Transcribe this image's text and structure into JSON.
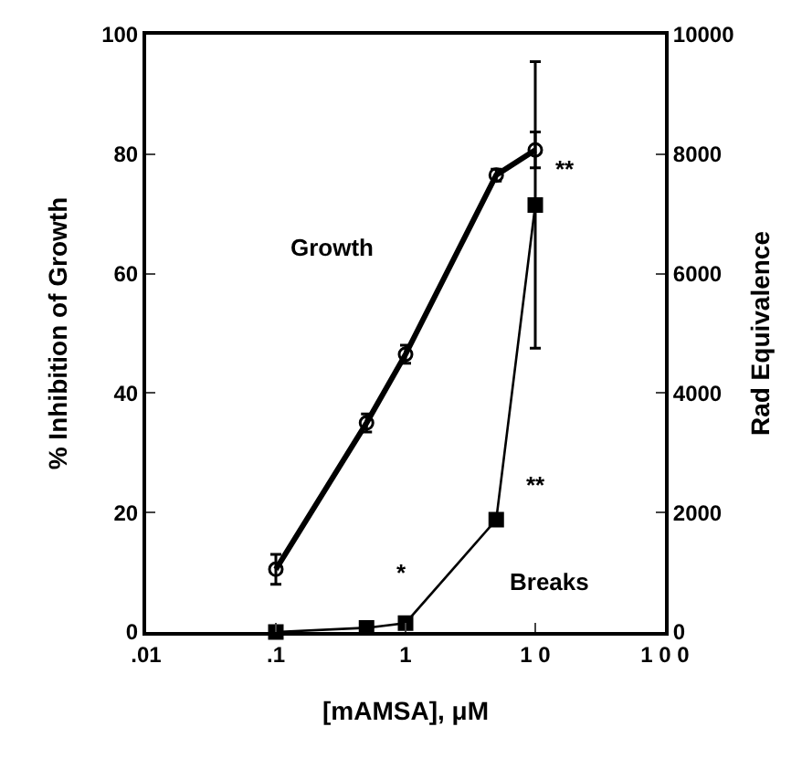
{
  "chart_data": {
    "type": "line",
    "xlabel": "[mAMSA], μM",
    "ylabel": "% Inhibition of Growth",
    "y2label": "Rad Equivalence",
    "log": "x",
    "legend": false,
    "xlim": [
      0.01,
      100
    ],
    "xticks": [
      {
        "value": 0.01,
        "label": ".01"
      },
      {
        "value": 0.1,
        "label": ".1"
      },
      1,
      {
        "value": 10,
        "label": "1 0"
      },
      {
        "value": 100,
        "label": "1 0 0"
      }
    ],
    "ylim": [
      0,
      100
    ],
    "yticks": [
      0,
      20,
      40,
      60,
      80,
      100
    ],
    "y2lim": [
      0,
      10000
    ],
    "y2ticks": [
      0,
      2000,
      4000,
      6000,
      8000,
      10000
    ],
    "series": [
      {
        "name": "Growth",
        "color": "#000000",
        "x": [
          0.1,
          0.5,
          1,
          5,
          10
        ],
        "values": [
          10.5,
          35,
          46.5,
          76.5,
          80.7
        ],
        "errors": [
          2.5,
          1.5,
          1.5,
          1,
          3
        ],
        "marker": "circle",
        "line_style": "solid"
      },
      {
        "name": "Breaks",
        "color": "#000000",
        "x": [
          0.1,
          0.5,
          1,
          5,
          10
        ],
        "values": [
          0,
          70,
          150,
          1880,
          7150
        ],
        "errors": [
          null,
          null,
          null,
          null,
          2400
        ],
        "marker": "square",
        "line_style": "solid",
        "axis": "y2"
      }
    ],
    "annotations": [
      "*",
      "**",
      "**"
    ]
  }
}
